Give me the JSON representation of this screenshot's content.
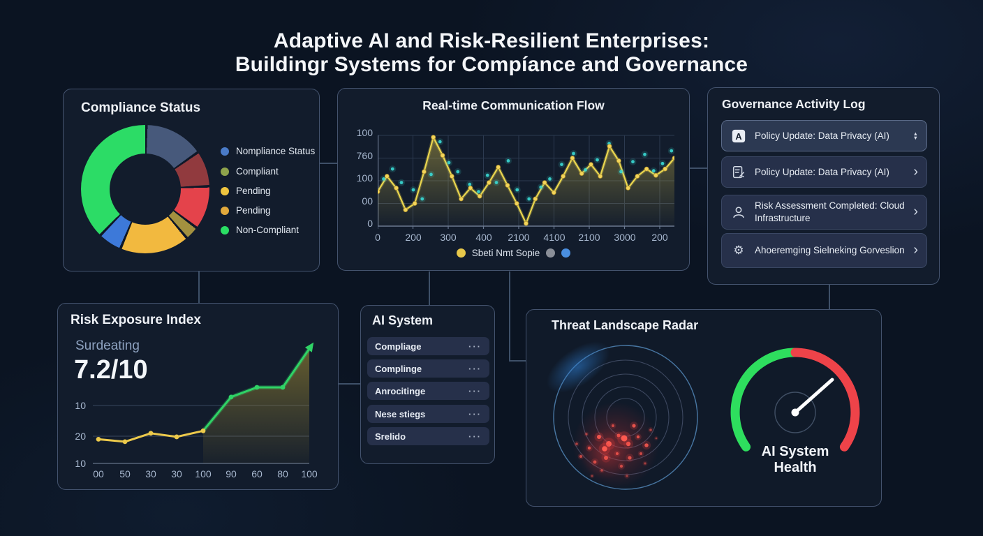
{
  "page": {
    "title_line1": "Adaptive AI and Risk-Resilient Enterprises:",
    "title_line2": "Buildingr Systems for Compíance and Governance"
  },
  "compliance": {
    "title": "Compliance Status",
    "legend": [
      {
        "label": "Nompliance Status",
        "color": "#4a7bc8"
      },
      {
        "label": "Compliant",
        "color": "#8fa34c"
      },
      {
        "label": "Pending",
        "color": "#eec43f"
      },
      {
        "label": "Pending",
        "color": "#e2a93c"
      },
      {
        "label": "Non-Compliant",
        "color": "#2ade64"
      }
    ]
  },
  "realtime": {
    "title": "Real-time Communication Flow"
  },
  "governance": {
    "title": "Governance Activity Log",
    "items": [
      {
        "icon": "policy-a-icon",
        "label": "Policy Update: Data Privacy (AI)",
        "control": "sort"
      },
      {
        "icon": "document-edit-icon",
        "label": "Policy Update: Data Privacy (AI)",
        "control": "chevron",
        "chevron": "›"
      },
      {
        "icon": "user-icon",
        "label": "Risk Assessment Completed: Cloud Infrastructure",
        "control": "chevron",
        "chevron": "›"
      },
      {
        "icon": "gear-icon",
        "label": "Ahoeremging Sielneking Gorveslion",
        "control": "chevron",
        "chevron": "›"
      }
    ],
    "gear_glyph": "⚙"
  },
  "risk": {
    "title": "Risk Exposure Index",
    "subtitle": "Surdeating",
    "score": "7.2/10"
  },
  "ai_system": {
    "title": "AI System",
    "menu_glyph": "···",
    "items": [
      {
        "label": "Compliage"
      },
      {
        "label": "Complinge"
      },
      {
        "label": "Anrocitinge"
      },
      {
        "label": "Nese stiegs"
      },
      {
        "label": "Srelido"
      }
    ]
  },
  "radar": {
    "title": "Threat Landscape Radar",
    "rings": 5,
    "ring_color": "#49546e",
    "outer_ring_color": "#4e7fae",
    "blip_color": "#e63c3c",
    "blips": [
      [
        -38,
        28,
        3,
        0.9
      ],
      [
        -52,
        44,
        2.2,
        0.8
      ],
      [
        -24,
        38,
        4,
        0.95
      ],
      [
        -10,
        26,
        2.5,
        0.85
      ],
      [
        4,
        38,
        3.2,
        0.9
      ],
      [
        18,
        28,
        2.2,
        0.8
      ],
      [
        30,
        40,
        2.8,
        0.85
      ],
      [
        -64,
        56,
        2,
        0.7
      ],
      [
        -44,
        64,
        2.4,
        0.75
      ],
      [
        -28,
        58,
        3,
        0.8
      ],
      [
        -12,
        52,
        2,
        0.8
      ],
      [
        6,
        58,
        2.6,
        0.8
      ],
      [
        22,
        52,
        2,
        0.7
      ],
      [
        -70,
        38,
        1.8,
        0.6
      ],
      [
        -6,
        70,
        2.2,
        0.7
      ],
      [
        -34,
        76,
        1.8,
        0.6
      ],
      [
        12,
        12,
        2.6,
        0.85
      ],
      [
        -18,
        12,
        2,
        0.7
      ],
      [
        36,
        18,
        1.8,
        0.6
      ],
      [
        -56,
        24,
        1.6,
        0.6
      ],
      [
        28,
        66,
        1.6,
        0.55
      ],
      [
        -48,
        84,
        1.5,
        0.5
      ],
      [
        2,
        84,
        1.8,
        0.5
      ],
      [
        44,
        30,
        1.4,
        0.5
      ],
      [
        -2,
        30,
        4.5,
        1
      ],
      [
        -30,
        45,
        3.8,
        1
      ]
    ],
    "gauge": {
      "green": "#2ede5e",
      "red": "#ee4349",
      "needle": "#ffffff",
      "label_line1": "AI System",
      "label_line2": "Health"
    }
  },
  "chart_data": [
    {
      "type": "pie",
      "title": "Compliance Status",
      "labels": [
        "Nompliance Status",
        "Compliant",
        "Pending",
        "Pending",
        "Non-Compliant"
      ],
      "donut_segments": [
        {
          "color": "#47597b",
          "pct": 15
        },
        {
          "color": "#913a3e",
          "pct": 9
        },
        {
          "color": "#e4434b",
          "pct": 11
        },
        {
          "color": "#a3913f",
          "pct": 3.5
        },
        {
          "color": "#f2b93f",
          "pct": 17.5
        },
        {
          "color": "#3d79d9",
          "pct": 6
        },
        {
          "color": "#2cdc66",
          "pct": 38
        }
      ],
      "legend_position": "right"
    },
    {
      "type": "line",
      "title": "Real-time Communication Flow",
      "x_ticks": [
        "0",
        "200",
        "300",
        "400",
        "2100",
        "4100",
        "2100",
        "3000",
        "200"
      ],
      "y_ticks": [
        "100",
        "760",
        "100",
        "00",
        "0"
      ],
      "ylim": [
        0,
        100
      ],
      "grid": true,
      "legend_position": "bottom",
      "series": [
        {
          "name": "Sbeti Nmt Sopie",
          "color": "#ead64f",
          "values": [
            38,
            55,
            42,
            18,
            25,
            60,
            98,
            78,
            55,
            30,
            42,
            33,
            48,
            65,
            45,
            25,
            3,
            30,
            48,
            37,
            55,
            75,
            58,
            68,
            55,
            88,
            72,
            42,
            55,
            63,
            56,
            63,
            75
          ]
        }
      ],
      "scatter": {
        "color": "#3ad6d0",
        "points": [
          [
            2,
            52
          ],
          [
            5,
            63
          ],
          [
            8,
            48
          ],
          [
            12,
            40
          ],
          [
            15,
            30
          ],
          [
            18,
            57
          ],
          [
            21,
            93
          ],
          [
            24,
            70
          ],
          [
            27,
            60
          ],
          [
            31,
            46
          ],
          [
            34,
            38
          ],
          [
            37,
            56
          ],
          [
            40,
            48
          ],
          [
            44,
            72
          ],
          [
            47,
            40
          ],
          [
            51,
            30
          ],
          [
            55,
            43
          ],
          [
            58,
            52
          ],
          [
            62,
            68
          ],
          [
            66,
            80
          ],
          [
            70,
            62
          ],
          [
            74,
            73
          ],
          [
            78,
            91
          ],
          [
            82,
            60
          ],
          [
            86,
            71
          ],
          [
            90,
            79
          ],
          [
            93,
            61
          ],
          [
            96,
            69
          ],
          [
            99,
            83
          ]
        ]
      },
      "legend_extra_dots": [
        "#8a8f98",
        "#4a8fe0"
      ]
    },
    {
      "type": "line",
      "title": "Risk Exposure Index",
      "x_ticks": [
        "00",
        "50",
        "30",
        "30",
        "100",
        "90",
        "60",
        "80",
        "100"
      ],
      "y_ticks": [
        "10",
        "20",
        "10"
      ],
      "ylim": [
        0,
        100
      ],
      "grid": true,
      "values": [
        20,
        18,
        25,
        22,
        27,
        55,
        63,
        63,
        95
      ],
      "yellow_color": "#ecc94b",
      "green_color": "#2fd366",
      "split_index": 4
    }
  ]
}
